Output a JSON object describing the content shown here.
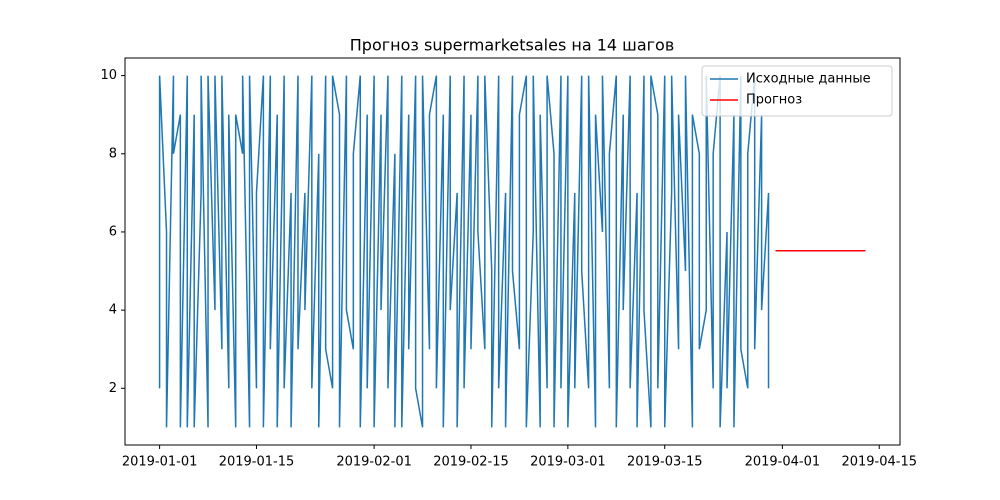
{
  "chart_data": {
    "type": "line",
    "title": "Прогноз supermarketsales на 14 шагов",
    "xlim": [
      "2018-12-27",
      "2019-04-18"
    ],
    "ylim": [
      0.55,
      10.45
    ],
    "xticks": [
      "2019-01-01",
      "2019-01-15",
      "2019-02-01",
      "2019-02-15",
      "2019-03-01",
      "2019-03-15",
      "2019-04-01",
      "2019-04-15"
    ],
    "yticks": [
      2,
      4,
      6,
      8,
      10
    ],
    "legend": "upper right",
    "series": [
      {
        "name": "Исходные данные",
        "color": "#1f77b4",
        "x": [
          "2019-01-01",
          "2019-01-01",
          "2019-01-02",
          "2019-01-02",
          "2019-01-03",
          "2019-01-03",
          "2019-01-04",
          "2019-01-04",
          "2019-01-05",
          "2019-01-05",
          "2019-01-06",
          "2019-01-06",
          "2019-01-07",
          "2019-01-07",
          "2019-01-08",
          "2019-01-08",
          "2019-01-09",
          "2019-01-09",
          "2019-01-10",
          "2019-01-10",
          "2019-01-11",
          "2019-01-11",
          "2019-01-12",
          "2019-01-12",
          "2019-01-13",
          "2019-01-13",
          "2019-01-14",
          "2019-01-14",
          "2019-01-15",
          "2019-01-15",
          "2019-01-16",
          "2019-01-16",
          "2019-01-17",
          "2019-01-17",
          "2019-01-18",
          "2019-01-18",
          "2019-01-19",
          "2019-01-19",
          "2019-01-20",
          "2019-01-20",
          "2019-01-21",
          "2019-01-21",
          "2019-01-22",
          "2019-01-22",
          "2019-01-23",
          "2019-01-23",
          "2019-01-24",
          "2019-01-24",
          "2019-01-25",
          "2019-01-25",
          "2019-01-26",
          "2019-01-26",
          "2019-01-27",
          "2019-01-27",
          "2019-01-28",
          "2019-01-28",
          "2019-01-29",
          "2019-01-29",
          "2019-01-30",
          "2019-01-30",
          "2019-01-31",
          "2019-01-31",
          "2019-02-01",
          "2019-02-01",
          "2019-02-02",
          "2019-02-02",
          "2019-02-03",
          "2019-02-03",
          "2019-02-04",
          "2019-02-04",
          "2019-02-05",
          "2019-02-05",
          "2019-02-06",
          "2019-02-06",
          "2019-02-07",
          "2019-02-07",
          "2019-02-08",
          "2019-02-08",
          "2019-02-09",
          "2019-02-09",
          "2019-02-10",
          "2019-02-10",
          "2019-02-11",
          "2019-02-11",
          "2019-02-12",
          "2019-02-12",
          "2019-02-13",
          "2019-02-13",
          "2019-02-14",
          "2019-02-14",
          "2019-02-15",
          "2019-02-15",
          "2019-02-16",
          "2019-02-16",
          "2019-02-17",
          "2019-02-17",
          "2019-02-18",
          "2019-02-18",
          "2019-02-19",
          "2019-02-19",
          "2019-02-20",
          "2019-02-20",
          "2019-02-21",
          "2019-02-21",
          "2019-02-22",
          "2019-02-22",
          "2019-02-23",
          "2019-02-23",
          "2019-02-24",
          "2019-02-24",
          "2019-02-25",
          "2019-02-25",
          "2019-02-26",
          "2019-02-26",
          "2019-02-27",
          "2019-02-27",
          "2019-02-28",
          "2019-02-28",
          "2019-03-01",
          "2019-03-01",
          "2019-03-02",
          "2019-03-02",
          "2019-03-03",
          "2019-03-03",
          "2019-03-04",
          "2019-03-04",
          "2019-03-05",
          "2019-03-05",
          "2019-03-06",
          "2019-03-06",
          "2019-03-07",
          "2019-03-07",
          "2019-03-08",
          "2019-03-08",
          "2019-03-09",
          "2019-03-09",
          "2019-03-10",
          "2019-03-10",
          "2019-03-11",
          "2019-03-11",
          "2019-03-12",
          "2019-03-12",
          "2019-03-13",
          "2019-03-13",
          "2019-03-14",
          "2019-03-14",
          "2019-03-15",
          "2019-03-15",
          "2019-03-16",
          "2019-03-16",
          "2019-03-17",
          "2019-03-17",
          "2019-03-18",
          "2019-03-18",
          "2019-03-19",
          "2019-03-19",
          "2019-03-20",
          "2019-03-20",
          "2019-03-21",
          "2019-03-21",
          "2019-03-22",
          "2019-03-22",
          "2019-03-23",
          "2019-03-23",
          "2019-03-24",
          "2019-03-24",
          "2019-03-25",
          "2019-03-25",
          "2019-03-26",
          "2019-03-26",
          "2019-03-27",
          "2019-03-27",
          "2019-03-28",
          "2019-03-28",
          "2019-03-29",
          "2019-03-29",
          "2019-03-30",
          "2019-03-30"
        ],
        "values": [
          2,
          10,
          6,
          1,
          10,
          8,
          9,
          1,
          10,
          1,
          9,
          1,
          7,
          10,
          1,
          10,
          4,
          10,
          3,
          10,
          2,
          9,
          1,
          9,
          8,
          10,
          1,
          10,
          2,
          7,
          10,
          1,
          10,
          3,
          9,
          1,
          10,
          2,
          7,
          1,
          10,
          3,
          7,
          4,
          10,
          2,
          8,
          1,
          10,
          3,
          2,
          10,
          9,
          1,
          10,
          4,
          3,
          8,
          10,
          1,
          9,
          2,
          10,
          1,
          9,
          4,
          10,
          2,
          8,
          1,
          10,
          1,
          9,
          3,
          10,
          2,
          1,
          10,
          3,
          9,
          10,
          2,
          9,
          1,
          10,
          4,
          7,
          1,
          10,
          2,
          9,
          3,
          10,
          6,
          3,
          10,
          5,
          1,
          10,
          2,
          7,
          1,
          10,
          5,
          3,
          9,
          10,
          1,
          6,
          10,
          1,
          9,
          2,
          10,
          8,
          1,
          10,
          2,
          10,
          1,
          7,
          2,
          10,
          5,
          2,
          10,
          1,
          9,
          6,
          10,
          2,
          8,
          10,
          1,
          9,
          4,
          10,
          2,
          7,
          1,
          10,
          4,
          1,
          10,
          9,
          2,
          10,
          1,
          7,
          10,
          3,
          9,
          5,
          10,
          1,
          9,
          8,
          3,
          4,
          10,
          2,
          8,
          10,
          1,
          6,
          2,
          9,
          1,
          10,
          3,
          2,
          8,
          10,
          3,
          9,
          4,
          7,
          2
        ]
      },
      {
        "name": "Прогноз",
        "color": "#ff0000",
        "x": [
          "2019-03-31",
          "2019-04-01",
          "2019-04-02",
          "2019-04-03",
          "2019-04-04",
          "2019-04-05",
          "2019-04-06",
          "2019-04-07",
          "2019-04-08",
          "2019-04-09",
          "2019-04-10",
          "2019-04-11",
          "2019-04-12",
          "2019-04-13"
        ],
        "values": [
          5.52,
          5.52,
          5.52,
          5.52,
          5.52,
          5.52,
          5.52,
          5.52,
          5.52,
          5.52,
          5.52,
          5.52,
          5.52,
          5.52
        ]
      }
    ]
  }
}
